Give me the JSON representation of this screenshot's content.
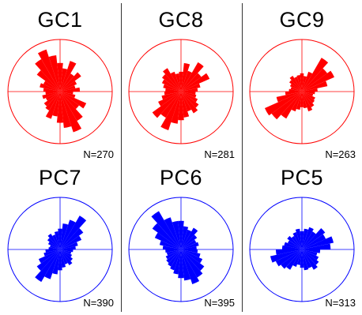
{
  "colors": {
    "gc": "#ff0000",
    "pc": "#0000ff"
  },
  "chart_data": [
    {
      "type": "rose",
      "title": "GC1",
      "count_label": "N=270",
      "color": "#ff0000",
      "petals": [
        [
          0,
          0.55
        ],
        [
          12,
          0.45
        ],
        [
          24,
          0.62
        ],
        [
          36,
          0.4
        ],
        [
          48,
          0.5
        ],
        [
          60,
          0.35
        ],
        [
          72,
          0.3
        ],
        [
          84,
          0.38
        ],
        [
          96,
          0.25
        ],
        [
          108,
          0.3
        ],
        [
          120,
          0.55
        ],
        [
          132,
          0.45
        ],
        [
          144,
          0.65
        ],
        [
          156,
          0.82
        ],
        [
          168,
          0.7
        ],
        [
          180,
          0.6
        ],
        [
          192,
          0.48
        ],
        [
          204,
          0.55
        ],
        [
          216,
          0.42
        ],
        [
          228,
          0.38
        ],
        [
          240,
          0.3
        ],
        [
          252,
          0.35
        ],
        [
          264,
          0.28
        ],
        [
          276,
          0.32
        ],
        [
          288,
          0.4
        ],
        [
          300,
          0.35
        ],
        [
          312,
          0.55
        ],
        [
          324,
          0.72
        ],
        [
          336,
          0.85
        ],
        [
          348,
          0.7
        ]
      ]
    },
    {
      "type": "rose",
      "title": "GC8",
      "count_label": "N=281",
      "color": "#ff0000",
      "petals": [
        [
          0,
          0.38
        ],
        [
          12,
          0.55
        ],
        [
          24,
          0.42
        ],
        [
          36,
          0.65
        ],
        [
          48,
          0.48
        ],
        [
          60,
          0.6
        ],
        [
          72,
          0.38
        ],
        [
          84,
          0.32
        ],
        [
          96,
          0.28
        ],
        [
          108,
          0.3
        ],
        [
          120,
          0.35
        ],
        [
          132,
          0.42
        ],
        [
          144,
          0.48
        ],
        [
          156,
          0.4
        ],
        [
          168,
          0.5
        ],
        [
          180,
          0.55
        ],
        [
          192,
          0.62
        ],
        [
          204,
          0.78
        ],
        [
          216,
          0.58
        ],
        [
          228,
          0.68
        ],
        [
          240,
          0.48
        ],
        [
          252,
          0.38
        ],
        [
          264,
          0.32
        ],
        [
          276,
          0.3
        ],
        [
          288,
          0.35
        ],
        [
          300,
          0.4
        ],
        [
          312,
          0.45
        ],
        [
          324,
          0.52
        ],
        [
          336,
          0.4
        ],
        [
          348,
          0.35
        ]
      ]
    },
    {
      "type": "rose",
      "title": "GC9",
      "count_label": "N=263",
      "color": "#ff0000",
      "petals": [
        [
          0,
          0.35
        ],
        [
          12,
          0.3
        ],
        [
          24,
          0.4
        ],
        [
          36,
          0.75
        ],
        [
          48,
          0.6
        ],
        [
          60,
          0.68
        ],
        [
          72,
          0.5
        ],
        [
          84,
          0.3
        ],
        [
          96,
          0.25
        ],
        [
          108,
          0.22
        ],
        [
          120,
          0.28
        ],
        [
          132,
          0.3
        ],
        [
          144,
          0.35
        ],
        [
          156,
          0.4
        ],
        [
          168,
          0.32
        ],
        [
          180,
          0.3
        ],
        [
          192,
          0.35
        ],
        [
          204,
          0.4
        ],
        [
          216,
          0.6
        ],
        [
          228,
          0.72
        ],
        [
          240,
          0.78
        ],
        [
          252,
          0.5
        ],
        [
          264,
          0.32
        ],
        [
          276,
          0.25
        ],
        [
          288,
          0.22
        ],
        [
          300,
          0.25
        ],
        [
          312,
          0.3
        ],
        [
          324,
          0.35
        ],
        [
          336,
          0.3
        ],
        [
          348,
          0.32
        ]
      ]
    },
    {
      "type": "rose",
      "title": "PC7",
      "count_label": "N=390",
      "color": "#0000ff",
      "petals": [
        [
          0,
          0.4
        ],
        [
          12,
          0.5
        ],
        [
          24,
          0.6
        ],
        [
          36,
          0.75
        ],
        [
          48,
          0.55
        ],
        [
          60,
          0.45
        ],
        [
          72,
          0.35
        ],
        [
          84,
          0.3
        ],
        [
          96,
          0.25
        ],
        [
          108,
          0.22
        ],
        [
          120,
          0.25
        ],
        [
          132,
          0.3
        ],
        [
          144,
          0.35
        ],
        [
          156,
          0.3
        ],
        [
          168,
          0.35
        ],
        [
          180,
          0.4
        ],
        [
          192,
          0.48
        ],
        [
          204,
          0.6
        ],
        [
          216,
          0.72
        ],
        [
          228,
          0.55
        ],
        [
          240,
          0.45
        ],
        [
          252,
          0.32
        ],
        [
          264,
          0.28
        ],
        [
          276,
          0.22
        ],
        [
          288,
          0.2
        ],
        [
          300,
          0.25
        ],
        [
          312,
          0.3
        ],
        [
          324,
          0.35
        ],
        [
          336,
          0.3
        ],
        [
          348,
          0.35
        ]
      ]
    },
    {
      "type": "rose",
      "title": "PC6",
      "count_label": "N=395",
      "color": "#0000ff",
      "petals": [
        [
          0,
          0.55
        ],
        [
          12,
          0.45
        ],
        [
          24,
          0.4
        ],
        [
          36,
          0.48
        ],
        [
          48,
          0.38
        ],
        [
          60,
          0.32
        ],
        [
          72,
          0.35
        ],
        [
          84,
          0.3
        ],
        [
          96,
          0.32
        ],
        [
          108,
          0.38
        ],
        [
          120,
          0.45
        ],
        [
          132,
          0.55
        ],
        [
          144,
          0.62
        ],
        [
          156,
          0.7
        ],
        [
          168,
          0.6
        ],
        [
          180,
          0.55
        ],
        [
          192,
          0.48
        ],
        [
          204,
          0.42
        ],
        [
          216,
          0.38
        ],
        [
          228,
          0.35
        ],
        [
          240,
          0.32
        ],
        [
          252,
          0.28
        ],
        [
          264,
          0.3
        ],
        [
          276,
          0.35
        ],
        [
          288,
          0.42
        ],
        [
          300,
          0.55
        ],
        [
          312,
          0.68
        ],
        [
          324,
          0.85
        ],
        [
          336,
          0.65
        ],
        [
          348,
          0.55
        ]
      ]
    },
    {
      "type": "rose",
      "title": "PC5",
      "count_label": "N=313",
      "color": "#0000ff",
      "petals": [
        [
          0,
          0.35
        ],
        [
          12,
          0.4
        ],
        [
          24,
          0.45
        ],
        [
          36,
          0.4
        ],
        [
          48,
          0.55
        ],
        [
          60,
          0.5
        ],
        [
          72,
          0.62
        ],
        [
          84,
          0.55
        ],
        [
          96,
          0.35
        ],
        [
          108,
          0.3
        ],
        [
          120,
          0.35
        ],
        [
          132,
          0.4
        ],
        [
          144,
          0.45
        ],
        [
          156,
          0.38
        ],
        [
          168,
          0.4
        ],
        [
          180,
          0.35
        ],
        [
          192,
          0.3
        ],
        [
          204,
          0.35
        ],
        [
          216,
          0.45
        ],
        [
          228,
          0.5
        ],
        [
          240,
          0.55
        ],
        [
          252,
          0.62
        ],
        [
          264,
          0.5
        ],
        [
          276,
          0.38
        ],
        [
          288,
          0.35
        ],
        [
          300,
          0.3
        ],
        [
          312,
          0.35
        ],
        [
          324,
          0.3
        ],
        [
          336,
          0.35
        ],
        [
          348,
          0.4
        ]
      ]
    }
  ]
}
